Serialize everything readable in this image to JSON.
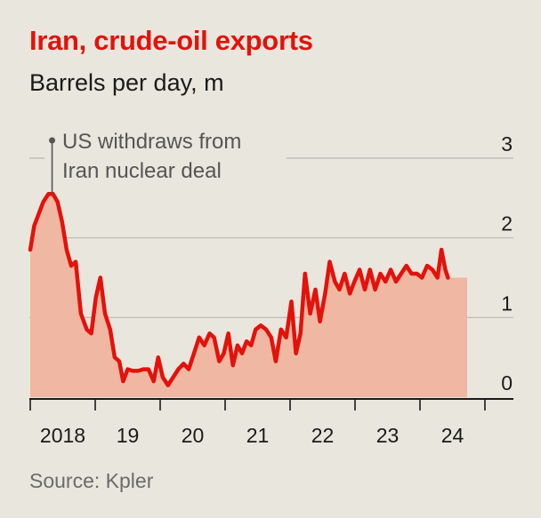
{
  "header": {
    "title": "Iran, crude-oil exports",
    "subtitle": "Barrels per day, m"
  },
  "footer": {
    "source": "Source: Kpler"
  },
  "colors": {
    "line": "#e3120b",
    "area": "#f0b7a2",
    "grid": "#b9b6ae",
    "background": "#e9e6dd"
  },
  "chart_data": {
    "type": "area",
    "title": "Iran, crude-oil exports",
    "ylabel": "Barrels per day, m",
    "ylim": [
      0,
      3
    ],
    "y_ticks": [
      0,
      1,
      2,
      3
    ],
    "x_ticks": [
      2018,
      2019,
      2020,
      2021,
      2022,
      2023,
      2024
    ],
    "x_tick_labels": [
      "2018",
      "19",
      "20",
      "21",
      "22",
      "23",
      "24"
    ],
    "xlim": [
      2018,
      2025
    ],
    "annotation": {
      "text_lines": [
        "US withdraws from",
        "Iran nuclear deal"
      ],
      "x": 2018.35,
      "y": 2.55
    },
    "series": [
      {
        "points": [
          [
            2018.0,
            1.85
          ],
          [
            2018.06,
            2.15
          ],
          [
            2018.13,
            2.3
          ],
          [
            2018.2,
            2.45
          ],
          [
            2018.28,
            2.55
          ],
          [
            2018.35,
            2.55
          ],
          [
            2018.42,
            2.45
          ],
          [
            2018.49,
            2.2
          ],
          [
            2018.56,
            1.85
          ],
          [
            2018.63,
            1.65
          ],
          [
            2018.7,
            1.7
          ],
          [
            2018.78,
            1.05
          ],
          [
            2018.87,
            0.85
          ],
          [
            2018.94,
            0.8
          ],
          [
            2019.01,
            1.25
          ],
          [
            2019.08,
            1.5
          ],
          [
            2019.15,
            1.05
          ],
          [
            2019.23,
            0.85
          ],
          [
            2019.3,
            0.5
          ],
          [
            2019.37,
            0.45
          ],
          [
            2019.43,
            0.2
          ],
          [
            2019.5,
            0.35
          ],
          [
            2019.58,
            0.33
          ],
          [
            2019.66,
            0.33
          ],
          [
            2019.74,
            0.35
          ],
          [
            2019.82,
            0.35
          ],
          [
            2019.9,
            0.2
          ],
          [
            2019.97,
            0.5
          ],
          [
            2020.04,
            0.25
          ],
          [
            2020.12,
            0.15
          ],
          [
            2020.2,
            0.25
          ],
          [
            2020.28,
            0.35
          ],
          [
            2020.36,
            0.42
          ],
          [
            2020.44,
            0.35
          ],
          [
            2020.52,
            0.55
          ],
          [
            2020.6,
            0.75
          ],
          [
            2020.68,
            0.65
          ],
          [
            2020.76,
            0.8
          ],
          [
            2020.83,
            0.75
          ],
          [
            2020.91,
            0.45
          ],
          [
            2020.98,
            0.55
          ],
          [
            2021.05,
            0.8
          ],
          [
            2021.12,
            0.4
          ],
          [
            2021.19,
            0.65
          ],
          [
            2021.26,
            0.55
          ],
          [
            2021.33,
            0.7
          ],
          [
            2021.4,
            0.65
          ],
          [
            2021.47,
            0.85
          ],
          [
            2021.55,
            0.9
          ],
          [
            2021.63,
            0.85
          ],
          [
            2021.71,
            0.75
          ],
          [
            2021.78,
            0.45
          ],
          [
            2021.86,
            0.85
          ],
          [
            2021.94,
            0.75
          ],
          [
            2022.02,
            1.2
          ],
          [
            2022.09,
            0.55
          ],
          [
            2022.16,
            0.8
          ],
          [
            2022.23,
            1.55
          ],
          [
            2022.31,
            1.05
          ],
          [
            2022.39,
            1.35
          ],
          [
            2022.46,
            0.95
          ],
          [
            2022.54,
            1.3
          ],
          [
            2022.61,
            1.7
          ],
          [
            2022.69,
            1.45
          ],
          [
            2022.76,
            1.35
          ],
          [
            2022.84,
            1.55
          ],
          [
            2022.92,
            1.3
          ],
          [
            2022.99,
            1.45
          ],
          [
            2023.07,
            1.6
          ],
          [
            2023.15,
            1.35
          ],
          [
            2023.23,
            1.6
          ],
          [
            2023.31,
            1.35
          ],
          [
            2023.39,
            1.55
          ],
          [
            2023.47,
            1.45
          ],
          [
            2023.55,
            1.6
          ],
          [
            2023.63,
            1.45
          ],
          [
            2023.71,
            1.55
          ],
          [
            2023.79,
            1.65
          ],
          [
            2023.87,
            1.55
          ],
          [
            2023.95,
            1.55
          ],
          [
            2024.03,
            1.5
          ],
          [
            2024.11,
            1.65
          ],
          [
            2024.19,
            1.6
          ],
          [
            2024.27,
            1.5
          ],
          [
            2024.33,
            1.85
          ],
          [
            2024.39,
            1.6
          ],
          [
            2024.43,
            1.5
          ]
        ]
      }
    ]
  }
}
